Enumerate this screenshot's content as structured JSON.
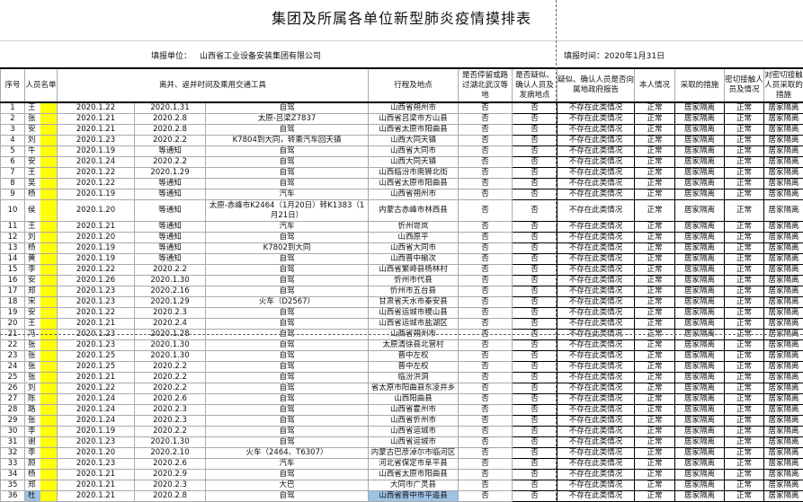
{
  "title": "集团及所属各单位新型肺炎疫情摸排表",
  "info": {
    "unit_label": "填报单位：",
    "unit_value": "山西省工业设备安装集团有限公司",
    "date_label": "填报时间：2020年1月31日"
  },
  "headers": [
    "序号",
    "人员名单",
    "离并、返并时间及乘用交通工具",
    "行程及地点",
    "是否停留或路过湖北武汉等地",
    "是否疑似、确认人员及发病地点",
    "疑似、确认人员是否向属地政府报告",
    "本人情况",
    "采取的措施",
    "密切接触人员及情况",
    "对密切接触人员采取的措施"
  ],
  "colors": {
    "highlight_mask": "#ffff00",
    "selection": "#9dc3e6"
  },
  "selected_row": 36,
  "rows": [
    [
      "1",
      "王",
      "2020.1.22",
      "2020.1.31",
      "自驾",
      "山西省朔州市",
      "否",
      "否",
      "不存在此类情况",
      "正常",
      "居家隔离",
      "正常",
      "居家隔离"
    ],
    [
      "2",
      "张",
      "2020.1.21",
      "2020.2.8",
      "太原-吕梁Z7837",
      "山西省吕梁市方山县",
      "否",
      "否",
      "不存在此类情况",
      "正常",
      "居家隔离",
      "正常",
      "居家隔离"
    ],
    [
      "3",
      "安",
      "2020.1.21",
      "2020.2.8",
      "自驾",
      "山西省太原市阳曲县",
      "否",
      "否",
      "不存在此类情况",
      "正常",
      "居家隔离",
      "正常",
      "居家隔离"
    ],
    [
      "4",
      "刘",
      "2020.1.23",
      "2020.2.2",
      "K7804到大同，转乘汽车回天镇",
      "山西大同天镇",
      "否",
      "否",
      "不存在此类情况",
      "正常",
      "居家隔离",
      "正常",
      "居家隔离"
    ],
    [
      "5",
      "牛",
      "2020.1.19",
      "等通知",
      "自驾",
      "山西省大同市",
      "否",
      "否",
      "不存在此类情况",
      "正常",
      "居家隔离",
      "正常",
      "居家隔离"
    ],
    [
      "6",
      "安",
      "2020.1.24",
      "2020.2.2",
      "自驾",
      "山西大同天镇",
      "否",
      "否",
      "不存在此类情况",
      "正常",
      "居家隔离",
      "正常",
      "居家隔离"
    ],
    [
      "7",
      "王",
      "2020.1.22",
      "2020.1.29",
      "自驾",
      "山西临汾市南狮北街",
      "否",
      "否",
      "不存在此类情况",
      "正常",
      "居家隔离",
      "正常",
      "居家隔离"
    ],
    [
      "8",
      "吴",
      "2020.1.22",
      "等通知",
      "自驾",
      "山西省太原市阳曲县",
      "否",
      "否",
      "不存在此类情况",
      "正常",
      "居家隔离",
      "正常",
      "居家隔离"
    ],
    [
      "9",
      "杨",
      "2020.1.19",
      "等通知",
      "汽车",
      "山西省朔州市",
      "否",
      "否",
      "不存在此类情况",
      "正常",
      "居家隔离",
      "正常",
      "居家隔离"
    ],
    [
      "10",
      "侯",
      "2020.1.20",
      "等通知",
      "太原-赤峰市K2464（1月20日）转K1383（1月21日）",
      "内蒙古赤峰市林西县",
      "否",
      "否",
      "不存在此类情况",
      "正常",
      "居家隔离",
      "正常",
      "居家隔离"
    ],
    [
      "11",
      "王",
      "2020.1.21",
      "等通知",
      "汽车",
      "忻州岢岚",
      "否",
      "否",
      "不存在此类情况",
      "正常",
      "居家隔离",
      "正常",
      "居家隔离"
    ],
    [
      "12",
      "刘",
      "2020.1.20",
      "等通知",
      "自驾",
      "山西原平",
      "否",
      "否",
      "不存在此类情况",
      "正常",
      "居家隔离",
      "正常",
      "居家隔离"
    ],
    [
      "13",
      "杨",
      "2020.1.19",
      "等通知",
      "K7802到大同",
      "山西省大同市",
      "否",
      "否",
      "不存在此类情况",
      "正常",
      "居家隔离",
      "正常",
      "居家隔离"
    ],
    [
      "14",
      "黄",
      "2020.1.19",
      "等通知",
      "自驾",
      "山西晋中榆次",
      "否",
      "否",
      "不存在此类情况",
      "正常",
      "居家隔离",
      "正常",
      "居家隔离"
    ],
    [
      "15",
      "李",
      "2020.1.22",
      "2020.2.2",
      "自驾",
      "山西省繁峙县杨林村",
      "否",
      "否",
      "不存在此类情况",
      "正常",
      "居家隔离",
      "正常",
      "居家隔离"
    ],
    [
      "16",
      "安",
      "2020.1.26",
      "2020.1.30",
      "自驾",
      "忻州市代县",
      "否",
      "否",
      "不存在此类情况",
      "正常",
      "居家隔离",
      "正常",
      "居家隔离"
    ],
    [
      "17",
      "郑",
      "2020.1.23",
      "2020.2.16",
      "自驾",
      "忻州市五台县",
      "否",
      "否",
      "不存在此类情况",
      "正常",
      "居家隔离",
      "正常",
      "居家隔离"
    ],
    [
      "18",
      "宋",
      "2020.1.23",
      "2020.1.29",
      "火车（D2567）",
      "甘肃省天水市秦安县",
      "否",
      "否",
      "不存在此类情况",
      "正常",
      "居家隔离",
      "正常",
      "居家隔离"
    ],
    [
      "19",
      "安",
      "2020.1.22",
      "2020.2.3",
      "自驾",
      "山西省运城市稷山县",
      "否",
      "否",
      "不存在此类情况",
      "正常",
      "居家隔离",
      "正常",
      "居家隔离"
    ],
    [
      "20",
      "王",
      "2020.1.21",
      "2020.2.4",
      "自驾",
      "山西省运城市盐湖区",
      "否",
      "否",
      "不存在此类情况",
      "正常",
      "居家隔离",
      "正常",
      "居家隔离"
    ],
    [
      "21",
      "冯",
      "2020.1.23",
      "2020.1.28",
      "自驾",
      "山西省朔州市",
      "否",
      "否",
      "不存在此类情况",
      "正常",
      "居家隔离",
      "正常",
      "居家隔离"
    ],
    [
      "22",
      "张",
      "2020.1.23",
      "2020.1.30",
      "自驾",
      "太原清徐县北营村",
      "否",
      "否",
      "不存在此类情况",
      "正常",
      "居家隔离",
      "正常",
      "居家隔离"
    ],
    [
      "23",
      "张",
      "2020.1.25",
      "2020.1.30",
      "自驾",
      "晋中左权",
      "否",
      "否",
      "不存在此类情况",
      "正常",
      "居家隔离",
      "正常",
      "居家隔离"
    ],
    [
      "24",
      "张",
      "2020.1.25",
      "2020.2.2",
      "自驾",
      "晋中左权",
      "否",
      "否",
      "不存在此类情况",
      "正常",
      "居家隔离",
      "正常",
      "居家隔离"
    ],
    [
      "25",
      "张",
      "2020.1.21",
      "2020.2.2",
      "自驾",
      "临汾洪洞",
      "否",
      "否",
      "不存在此类情况",
      "正常",
      "居家隔离",
      "正常",
      "居家隔离"
    ],
    [
      "26",
      "刘",
      "2020.1.22",
      "2020.2.2",
      "自驾",
      "省太原市阳曲县东凌井乡",
      "否",
      "否",
      "不存在此类情况",
      "正常",
      "居家隔离",
      "正常",
      "居家隔离"
    ],
    [
      "27",
      "陈",
      "2020.1.24",
      "2020.2.6",
      "自驾",
      "山西阳曲县",
      "否",
      "否",
      "不存在此类情况",
      "正常",
      "居家隔离",
      "正常",
      "居家隔离"
    ],
    [
      "28",
      "路",
      "2020.1.24",
      "2020.2.3",
      "自驾",
      "山西省霍州市",
      "否",
      "否",
      "不存在此类情况",
      "正常",
      "居家隔离",
      "正常",
      "居家隔离"
    ],
    [
      "29",
      "张",
      "2020.1.24",
      "2020.2.3",
      "自驾",
      "山西省忻州市",
      "否",
      "否",
      "不存在此类情况",
      "正常",
      "居家隔离",
      "正常",
      "居家隔离"
    ],
    [
      "30",
      "李",
      "2020.1.19",
      "2020.2.2",
      "自驾",
      "山西省运城市",
      "否",
      "否",
      "不存在此类情况",
      "正常",
      "居家隔离",
      "正常",
      "居家隔离"
    ],
    [
      "31",
      "谢",
      "2020.1.23",
      "2020.1.30",
      "自驾",
      "山西省运城市",
      "否",
      "否",
      "不存在此类情况",
      "正常",
      "居家隔离",
      "正常",
      "居家隔离"
    ],
    [
      "32",
      "李",
      "2020.1.20",
      "2020.2.10",
      "火车（2464、T6307）",
      "内蒙古巴彦淖尔市临河区",
      "否",
      "否",
      "不存在此类情况",
      "正常",
      "居家隔离",
      "正常",
      "居家隔离"
    ],
    [
      "33",
      "顾",
      "2020.1.23",
      "2020.2.6",
      "汽车",
      "河北省保定市阜平县",
      "否",
      "否",
      "不存在此类情况",
      "正常",
      "居家隔离",
      "正常",
      "居家隔离"
    ],
    [
      "34",
      "杨",
      "2020.1.21",
      "2020.2.9",
      "自驾",
      "山西省太原市阳曲县",
      "否",
      "否",
      "不存在此类情况",
      "正常",
      "居家隔离",
      "正常",
      "居家隔离"
    ],
    [
      "35",
      "郑",
      "2020.1.21",
      "2020.2.3",
      "大巴",
      "大同市广灵县",
      "否",
      "否",
      "不存在此类情况",
      "正常",
      "居家隔离",
      "正常",
      "居家隔离"
    ],
    [
      "36",
      "杜",
      "2020.1.21",
      "2020.2.8",
      "自驾",
      "山西省晋中市平遥县",
      "否",
      "否",
      "不存在此类情况",
      "正常",
      "居家隔离",
      "正常",
      "居家隔离"
    ]
  ]
}
